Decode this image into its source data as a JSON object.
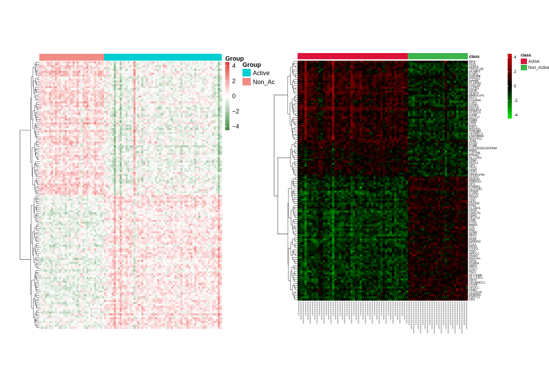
{
  "chart_data": [
    {
      "type": "heatmap",
      "title": "",
      "xlabel": "",
      "ylabel": "",
      "column_group_bar": {
        "title": "Group",
        "order": [
          {
            "group": "Non_Active",
            "columns": 33
          },
          {
            "group": "Active",
            "columns": 60
          }
        ]
      },
      "color_scale": {
        "title": "Group",
        "breaks": [
          4,
          2,
          0,
          -2,
          -4
        ],
        "labels": [
          "4",
          "2",
          "0",
          "−2",
          "−4"
        ],
        "range": [
          -4.5,
          4.5
        ],
        "low_color": "#3e8a3e",
        "mid_color": "#ffffff",
        "high_color": "#e53935"
      },
      "legend": {
        "title": "Group",
        "entries": [
          {
            "label": "Active",
            "color": "#00ced1"
          },
          {
            "label": "Non_Ac",
            "color": "#f08c84"
          }
        ]
      },
      "row_clusters": [
        {
          "rows": 70,
          "Non_Active_mean": 0.9,
          "Active_mean": -0.25
        },
        {
          "rows": 70,
          "Non_Active_mean": -0.45,
          "Active_mean": 0.55
        }
      ],
      "row_dendrogram": "left",
      "column_dendrogram": "none",
      "legend_position": "right"
    },
    {
      "type": "heatmap",
      "title": "",
      "xlabel": "",
      "ylabel": "",
      "column_group_bar": {
        "title": "class",
        "order": [
          {
            "group": "Active",
            "columns": 48
          },
          {
            "group": "Non_Active",
            "columns": 26
          }
        ]
      },
      "color_scale": {
        "title": "class",
        "breaks": [
          4,
          2,
          0,
          -2,
          -4
        ],
        "labels": [
          "4",
          "2",
          "0",
          "-2",
          "-4"
        ],
        "range": [
          -4.5,
          4.5
        ],
        "low_color": "#00e600",
        "mid_color": "#000000",
        "high_color": "#d40000"
      },
      "legend": {
        "title": "class",
        "entries": [
          {
            "label": "Active",
            "color": "#dc143c"
          },
          {
            "label": "Non_Active",
            "color": "#3cb44b"
          }
        ]
      },
      "row_clusters": [
        {
          "rows": 40,
          "Active_mean": 0.85,
          "Non_Active_mean": -0.7
        },
        {
          "rows": 18,
          "Active_mean": 0.35,
          "Non_Active_mean": -0.55
        },
        {
          "rows": 62,
          "Active_mean": -0.85,
          "Non_Active_mean": 0.55
        }
      ],
      "row_labels_visible": [
        "IRF8",
        "PLB1",
        "CLEC4",
        "TNFSF13B",
        "SLAMF1",
        "IL18R1",
        "CSF2RB",
        "PTPN22",
        "GPR65",
        "FCGR3B",
        "CXCL10",
        "LILRB3",
        "CSTB",
        "SEMA4",
        "NMRAL1P1",
        "RAC2",
        "CALHM6",
        "LAIR1",
        "LYVE1",
        "DOCK8",
        "SIGLEC1",
        "FCER1G",
        "C1QB",
        "SLC7A7",
        "ITGB2",
        "CD53",
        "LCP2",
        "IKZF1",
        "MS4A6A",
        "TYROBP",
        "APOBEC3",
        "LINC00926",
        "NCKAP1L",
        "TLR2",
        "EVI2B",
        "CYBB",
        "LOC105369169/NNM",
        "MSR1",
        "LAPTM5",
        "PTPRC",
        "HLA-DRA",
        "CD86",
        "NHSL2",
        "AIF1",
        "TRAC",
        "CD48",
        "CCR1",
        "ARHGAP30",
        "SASH3",
        "GIMAP4",
        "CORO1A",
        "SPI1",
        "FAM20A",
        "SLCO2B1",
        "CD163",
        "IL10RA",
        "HCLS1",
        "CD37",
        "LST1",
        "ZNF683",
        "FYB1",
        "SLAMF8",
        "LPXN",
        "CMKLR1",
        "CD84",
        "SELPLG",
        "LY96",
        "CTSS",
        "MNDA",
        "LCK",
        "CD2",
        "GZMK",
        "NKG7",
        "CCL5",
        "PLEK",
        "HAVCR2",
        "FGL2",
        "RGS1",
        "C3AR1",
        "TLR7",
        "MPEG1",
        "VSIG4",
        "MS4A4A",
        "CD14",
        "PSMB9",
        "GBP1",
        "STAT1",
        "CIITA",
        "TAP1",
        "HLA-DMB",
        "HLA-DPA1",
        "CD74",
        "ADAMDEC1",
        "CYTIP",
        "APOC1",
        "CD52",
        "ALOX5AP",
        "SAMSN1",
        "P2RY13",
        "CD4"
      ],
      "row_dendrogram": "left",
      "column_dendrogram": "none",
      "legend_position": "right"
    }
  ]
}
